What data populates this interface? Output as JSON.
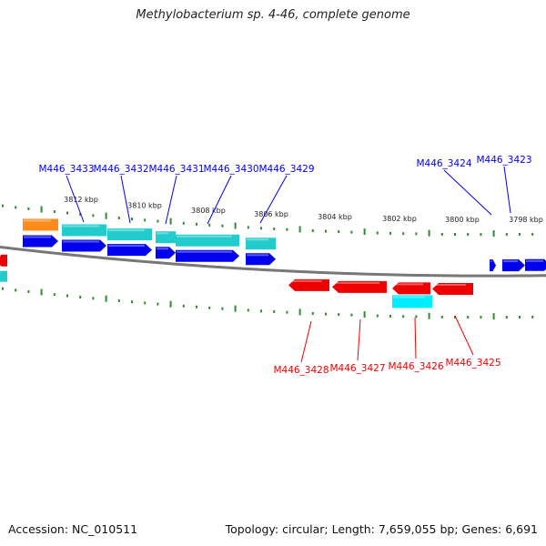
{
  "title": "Methylobacterium sp. 4-46, complete genome",
  "footer": {
    "accession": "Accession: NC_010511",
    "summary": "Topology: circular; Length: 7,659,055 bp; Genes: 6,691"
  },
  "colors": {
    "forward_cds": "#0000ee",
    "reverse_cds": "#ee0000",
    "forward_rna": "#22cccc",
    "reverse_rna": "#00eeff",
    "special": "#ff8c1a",
    "tick": "#2e8b2e",
    "backbone": "#777777"
  },
  "scale_labels": [
    "3812 kbp",
    "3810 kbp",
    "3808 kbp",
    "3806 kbp",
    "3804 kbp",
    "3802 kbp",
    "3800 kbp",
    "3798 kbp"
  ],
  "forward_labels": [
    "M446_3433",
    "M446_3432",
    "M446_3431",
    "M446_3430",
    "M446_3429",
    "M446_3424",
    "M446_3423"
  ],
  "reverse_labels": [
    "M446_3428",
    "M446_3427",
    "M446_3426",
    "M446_3425"
  ]
}
